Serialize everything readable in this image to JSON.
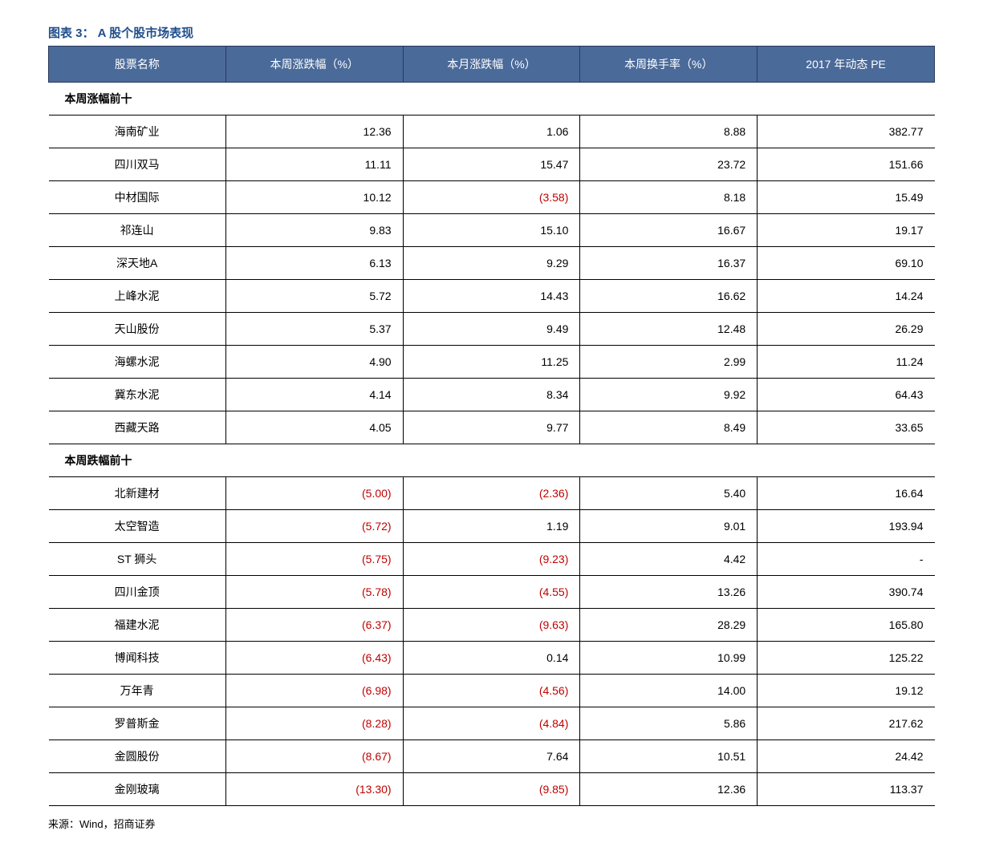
{
  "title": "图表 3：  A 股个股市场表现",
  "columns": [
    "股票名称",
    "本周涨跌幅（%）",
    "本月涨跌幅（%）",
    "本周换手率（%）",
    "2017 年动态 PE"
  ],
  "section1_label": "本周涨幅前十",
  "section2_label": "本周跌幅前十",
  "top_rows": [
    {
      "name": "海南矿业",
      "wk": "12.36",
      "wk_neg": false,
      "mo": "1.06",
      "mo_neg": false,
      "turn": "8.88",
      "pe": "382.77"
    },
    {
      "name": "四川双马",
      "wk": "11.11",
      "wk_neg": false,
      "mo": "15.47",
      "mo_neg": false,
      "turn": "23.72",
      "pe": "151.66"
    },
    {
      "name": "中材国际",
      "wk": "10.12",
      "wk_neg": false,
      "mo": "(3.58)",
      "mo_neg": true,
      "turn": "8.18",
      "pe": "15.49"
    },
    {
      "name": "祁连山",
      "wk": "9.83",
      "wk_neg": false,
      "mo": "15.10",
      "mo_neg": false,
      "turn": "16.67",
      "pe": "19.17"
    },
    {
      "name": "深天地A",
      "wk": "6.13",
      "wk_neg": false,
      "mo": "9.29",
      "mo_neg": false,
      "turn": "16.37",
      "pe": "69.10"
    },
    {
      "name": "上峰水泥",
      "wk": "5.72",
      "wk_neg": false,
      "mo": "14.43",
      "mo_neg": false,
      "turn": "16.62",
      "pe": "14.24"
    },
    {
      "name": "天山股份",
      "wk": "5.37",
      "wk_neg": false,
      "mo": "9.49",
      "mo_neg": false,
      "turn": "12.48",
      "pe": "26.29"
    },
    {
      "name": "海螺水泥",
      "wk": "4.90",
      "wk_neg": false,
      "mo": "11.25",
      "mo_neg": false,
      "turn": "2.99",
      "pe": "11.24"
    },
    {
      "name": "冀东水泥",
      "wk": "4.14",
      "wk_neg": false,
      "mo": "8.34",
      "mo_neg": false,
      "turn": "9.92",
      "pe": "64.43"
    },
    {
      "name": "西藏天路",
      "wk": "4.05",
      "wk_neg": false,
      "mo": "9.77",
      "mo_neg": false,
      "turn": "8.49",
      "pe": "33.65"
    }
  ],
  "bottom_rows": [
    {
      "name": "北新建材",
      "wk": "(5.00)",
      "wk_neg": true,
      "mo": "(2.36)",
      "mo_neg": true,
      "turn": "5.40",
      "pe": "16.64"
    },
    {
      "name": "太空智造",
      "wk": "(5.72)",
      "wk_neg": true,
      "mo": "1.19",
      "mo_neg": false,
      "turn": "9.01",
      "pe": "193.94"
    },
    {
      "name": "ST 狮头",
      "wk": "(5.75)",
      "wk_neg": true,
      "mo": "(9.23)",
      "mo_neg": true,
      "turn": "4.42",
      "pe": "-"
    },
    {
      "name": "四川金顶",
      "wk": "(5.78)",
      "wk_neg": true,
      "mo": "(4.55)",
      "mo_neg": true,
      "turn": "13.26",
      "pe": "390.74"
    },
    {
      "name": "福建水泥",
      "wk": "(6.37)",
      "wk_neg": true,
      "mo": "(9.63)",
      "mo_neg": true,
      "turn": "28.29",
      "pe": "165.80"
    },
    {
      "name": "博闻科技",
      "wk": "(6.43)",
      "wk_neg": true,
      "mo": "0.14",
      "mo_neg": false,
      "turn": "10.99",
      "pe": "125.22"
    },
    {
      "name": "万年青",
      "wk": "(6.98)",
      "wk_neg": true,
      "mo": "(4.56)",
      "mo_neg": true,
      "turn": "14.00",
      "pe": "19.12"
    },
    {
      "name": "罗普斯金",
      "wk": "(8.28)",
      "wk_neg": true,
      "mo": "(4.84)",
      "mo_neg": true,
      "turn": "5.86",
      "pe": "217.62"
    },
    {
      "name": "金圆股份",
      "wk": "(8.67)",
      "wk_neg": true,
      "mo": "7.64",
      "mo_neg": false,
      "turn": "10.51",
      "pe": "24.42"
    },
    {
      "name": "金刚玻璃",
      "wk": "(13.30)",
      "wk_neg": true,
      "mo": "(9.85)",
      "mo_neg": true,
      "turn": "12.36",
      "pe": "113.37"
    }
  ],
  "source": "来源：Wind，招商证券",
  "styling": {
    "header_bg": "#4a6a99",
    "header_text_color": "#ffffff",
    "title_color": "#1f4e8c",
    "negative_color": "#c00000",
    "border_color": "#000000",
    "font_family": "Microsoft YaHei",
    "font_size_body": 14,
    "font_size_title": 15,
    "col_widths_pct": [
      20,
      20,
      20,
      20,
      20
    ],
    "cell_align_first": "center",
    "cell_align_rest": "right"
  }
}
